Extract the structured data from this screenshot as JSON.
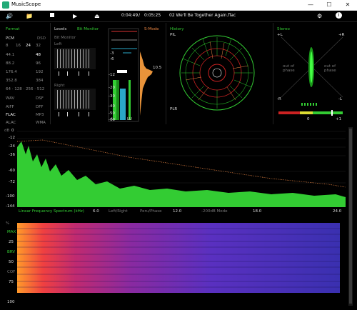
{
  "window": {
    "title": "MusicScope",
    "minimize": "—",
    "maximize": "☐",
    "close": "✕"
  },
  "toolbar": {
    "volume_icon": "volume-icon",
    "folder_icon": "folder-icon",
    "stop_icon": "stop-icon",
    "play_icon": "play-icon",
    "eject_icon": "eject-icon",
    "elapsed": "0:04:49",
    "separator": "/",
    "duration": "0:05:25",
    "track": "02 We'll Be Together Again.flac",
    "settings_icon": "gear-icon",
    "info_icon": "info-icon"
  },
  "format": {
    "header": "Format",
    "pcm_label": "PCM",
    "dsd_label": "DSD",
    "bits": [
      "8",
      "16",
      "24",
      "32"
    ],
    "rates_left": [
      "44.1",
      "88.2",
      "176.4",
      "352.8",
      "64 · 128 · 256 · 512"
    ],
    "rates_right": [
      "48",
      "96",
      "192",
      "384"
    ],
    "codecs_left": [
      "WAV",
      "AIFF",
      "FLAC",
      "ALAC"
    ],
    "codecs_right": [
      "DSF",
      "DFF",
      "MP3",
      "WMA"
    ]
  },
  "levels": {
    "header": "Levels",
    "bitmonitor": "Bit Monitor",
    "bitmonitor_sub": "Bit Monitor",
    "left": "Left",
    "right": "Right",
    "smode": "S-Mode",
    "scale": [
      "-3",
      "-6",
      "-12",
      "-20",
      "-30",
      "-40",
      "-50",
      "-60"
    ],
    "peak_label": "10.5",
    "lr_left": "L",
    "lr_right": "LU"
  },
  "history": {
    "header": "History",
    "pil": "PIL",
    "plr": "PLR"
  },
  "stereo": {
    "header": "Stereo",
    "plus_l": "+L",
    "plus_r": "+R",
    "minus_l": "-R",
    "minus_r": "-L",
    "out_phase_left": "out of phase",
    "out_phase_right": "out of phase",
    "corr_zero": "0",
    "corr_plus": "+1"
  },
  "spectrum": {
    "db_label": "dB",
    "y_ticks": [
      "0",
      "-12",
      "-24",
      "-36",
      "-48",
      "-60",
      "-72",
      "-84",
      "-96",
      "-100",
      "-144"
    ],
    "x_ticks": [
      "6.0",
      "12.0",
      "18.0",
      "24.0"
    ],
    "caption": "Linear Frequency Spectrum (kHz)",
    "mode_lr": "Left/Right",
    "mode_pp": "Peru/Phase",
    "mode_db": "-200dB Mode"
  },
  "spectrogram": {
    "y_label": "%",
    "rows": [
      "MAX",
      "25",
      "BRV",
      "50",
      "COF",
      "75",
      "100"
    ]
  },
  "colors": {
    "accent": "#33cc33",
    "orange": "#ee8844",
    "cyan": "#2aa8c8"
  }
}
